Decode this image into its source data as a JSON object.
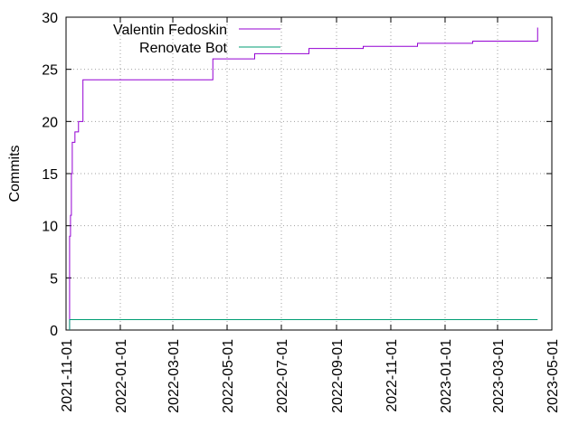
{
  "chart_data": {
    "type": "line",
    "title": "",
    "xlabel": "",
    "ylabel": "Commits",
    "x_type": "date",
    "xlim": [
      "2021-11-01",
      "2023-05-01"
    ],
    "ylim": [
      0,
      30
    ],
    "x_ticks": [
      "2021-11-01",
      "2022-01-01",
      "2022-03-01",
      "2022-05-01",
      "2022-07-01",
      "2022-09-01",
      "2022-11-01",
      "2023-01-01",
      "2023-03-01",
      "2023-05-01"
    ],
    "y_ticks": [
      0,
      5,
      10,
      15,
      20,
      25,
      30
    ],
    "grid": "dotted, both axes",
    "legend_position": "top-left",
    "series": [
      {
        "name": "Valentin Fedoskin",
        "color": "#9400d3",
        "step": true,
        "points": [
          [
            "2021-11-05",
            0
          ],
          [
            "2021-11-05",
            9
          ],
          [
            "2021-11-06",
            11
          ],
          [
            "2021-11-07",
            15
          ],
          [
            "2021-11-08",
            18
          ],
          [
            "2021-11-11",
            19
          ],
          [
            "2021-11-15",
            20
          ],
          [
            "2021-11-20",
            21
          ],
          [
            "2021-11-20",
            24
          ],
          [
            "2022-04-15",
            25
          ],
          [
            "2022-04-15",
            26
          ],
          [
            "2022-06-01",
            26.5
          ],
          [
            "2022-08-01",
            27
          ],
          [
            "2022-10-01",
            27.2
          ],
          [
            "2022-12-01",
            27.5
          ],
          [
            "2023-02-01",
            27.7
          ],
          [
            "2023-04-15",
            28
          ],
          [
            "2023-04-15",
            29
          ]
        ]
      },
      {
        "name": "Renovate Bot",
        "color": "#009e73",
        "step": true,
        "points": [
          [
            "2021-11-05",
            0
          ],
          [
            "2021-11-05",
            1
          ],
          [
            "2023-04-15",
            1
          ]
        ]
      }
    ]
  }
}
